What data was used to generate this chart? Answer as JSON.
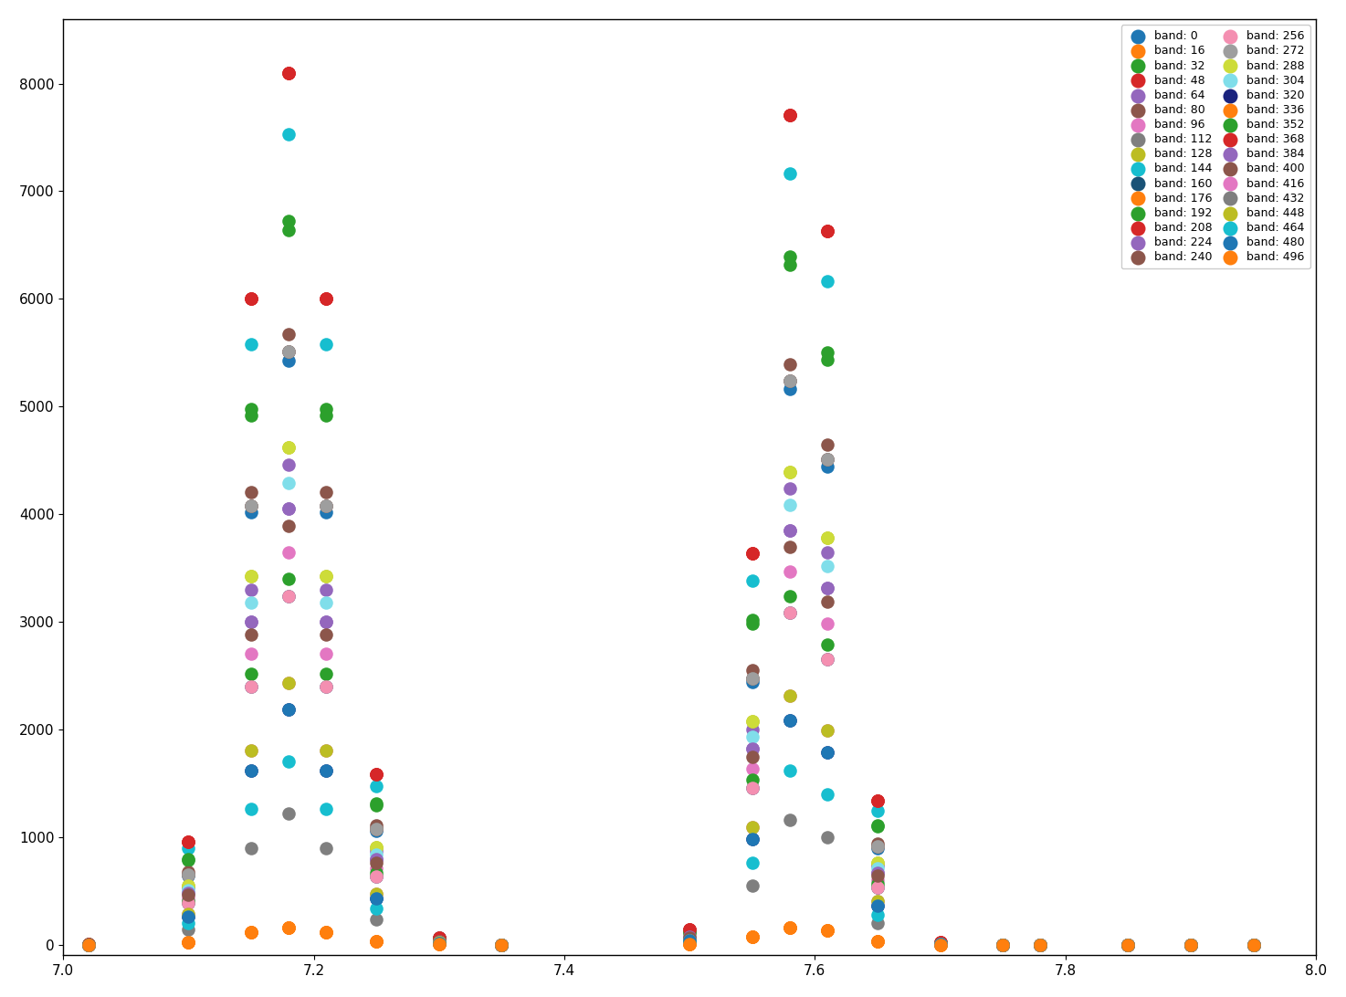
{
  "bands": [
    0,
    16,
    32,
    48,
    64,
    80,
    96,
    112,
    128,
    144,
    160,
    176,
    192,
    208,
    224,
    240,
    256,
    272,
    288,
    304,
    320,
    336,
    352,
    368,
    384,
    400,
    416,
    432,
    448,
    464,
    480,
    496
  ],
  "band_colors": [
    "#1f77b4",
    "#ff7f0e",
    "#2ca02c",
    "#d62728",
    "#9467bd",
    "#8c564b",
    "#e377c2",
    "#7f7f7f",
    "#bcbd22",
    "#17becf",
    "#1a5276",
    "#ff7f0e",
    "#2ca02c",
    "#d62728",
    "#9467bd",
    "#8c564b",
    "#f48fb1",
    "#9e9e9e",
    "#cddc39",
    "#80deea",
    "#1a237e",
    "#ff7f0e",
    "#2ca02c",
    "#d62728",
    "#9467bd",
    "#8c564b",
    "#e377c2",
    "#7f7f7f",
    "#bcbd22",
    "#17becf",
    "#1f77b4",
    "#ff7f0e"
  ],
  "xlim": [
    7.0,
    8.0
  ],
  "ylim": [
    -100,
    8600
  ],
  "xticks": [
    7.0,
    7.2,
    7.4,
    7.6,
    7.8,
    8.0
  ],
  "yticks": [
    0,
    1000,
    2000,
    3000,
    4000,
    5000,
    6000,
    7000,
    8000
  ],
  "marker_size": 110,
  "figsize": [
    14.74,
    10.92
  ],
  "dpi": 100,
  "band_scales": [
    0.67,
    0.02,
    0.82,
    1.0,
    0.55,
    0.7,
    0.45,
    0.68,
    0.57,
    0.93,
    0.4,
    0.02,
    0.42,
    1.0,
    0.5,
    0.68,
    0.4,
    0.68,
    0.57,
    0.53,
    0.27,
    0.02,
    0.83,
    1.0,
    0.5,
    0.48,
    0.3,
    0.15,
    0.3,
    0.21,
    0.27,
    0.02
  ]
}
